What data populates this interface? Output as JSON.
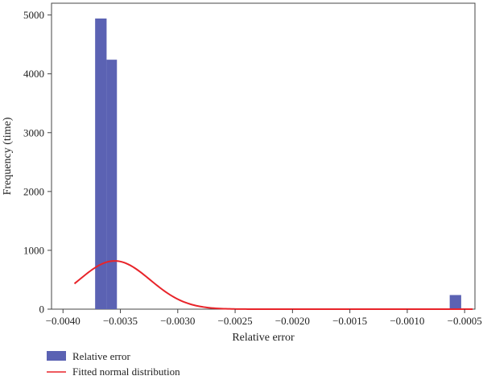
{
  "chart_data": {
    "type": "bar",
    "xlabel": "Relative error",
    "ylabel": "Frequency (time)",
    "xlim": [
      -0.0041,
      -0.00041
    ],
    "ylim": [
      0,
      5200
    ],
    "x_ticks": [
      -0.004,
      -0.0035,
      -0.003,
      -0.0025,
      -0.002,
      -0.0015,
      -0.001,
      -0.0005
    ],
    "x_tick_labels": [
      "−0.0040",
      "−0.0035",
      "−0.0030",
      "−0.0025",
      "−0.0020",
      "−0.0015",
      "−0.0010",
      "−0.0005"
    ],
    "y_ticks": [
      0,
      1000,
      2000,
      3000,
      4000,
      5000
    ],
    "y_tick_labels": [
      "0",
      "1000",
      "2000",
      "3000",
      "4000",
      "5000"
    ],
    "bar_color": "#5b62b3",
    "line_color": "#e8242a",
    "histogram": {
      "name": "Relative error",
      "bins": [
        {
          "x0": -0.00372,
          "x1": -0.00362,
          "count": 4940
        },
        {
          "x0": -0.00362,
          "x1": -0.00353,
          "count": 4240
        },
        {
          "x0": -0.00063,
          "x1": -0.00053,
          "count": 240
        }
      ]
    },
    "fitted_curve": {
      "name": "Fitted normal distribution",
      "mean": -0.00355,
      "sd": 0.00031,
      "peak": 820,
      "x_range": [
        -0.0039,
        -0.00043
      ]
    },
    "legend": {
      "placement": "bottom-left",
      "entries": [
        {
          "label": "Relative error",
          "kind": "bar"
        },
        {
          "label": "Fitted normal distribution",
          "kind": "line"
        }
      ]
    }
  }
}
